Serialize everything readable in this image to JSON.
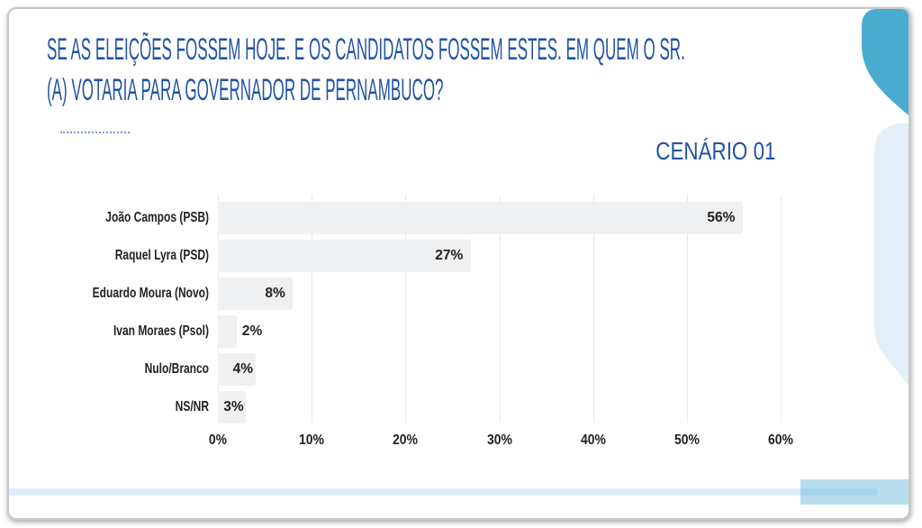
{
  "slide": {
    "title_lines": [
      "SE AS ELEIÇÕES FOSSEM HOJE. E OS CANDIDATOS FOSSEM ESTES. EM QUEM O SR.",
      "(A) VOTARIA PARA GOVERNADOR DE PERNAMBUCO?"
    ],
    "scenario_label": "CENÁRIO 01"
  },
  "chart_data": {
    "type": "bar",
    "orientation": "horizontal",
    "title": "",
    "xlabel": "",
    "ylabel": "",
    "categories": [
      "João Campos (PSB)",
      "Raquel Lyra (PSD)",
      "Eduardo Moura (Novo)",
      "Ivan Moraes (Psol)",
      "Nulo/Branco",
      "NS/NR"
    ],
    "values": [
      56,
      27,
      8,
      2,
      4,
      3
    ],
    "data_labels": [
      "56%",
      "27%",
      "8%",
      "2%",
      "4%",
      "3%"
    ],
    "value_suffix": "%",
    "xlim": [
      0,
      60
    ],
    "x_ticks": [
      "0%",
      "10%",
      "20%",
      "30%",
      "40%",
      "50%",
      "60%"
    ],
    "grid": true,
    "legend": false,
    "bar_color": "#eef0f2",
    "label_color": "#1f1f1f"
  },
  "colors": {
    "title_blue": "#2253a6",
    "gridline": "#e7e9eb",
    "card_border": "#c6c8ca",
    "petal_top_blue": "#4aabd0",
    "petal_side_blue": "#e2eff7",
    "bottom_line_blue": "#dcedf5",
    "bottom_rect_blue": "#b9dfee",
    "bottom_stripe_blue": "#a5d5e8"
  }
}
